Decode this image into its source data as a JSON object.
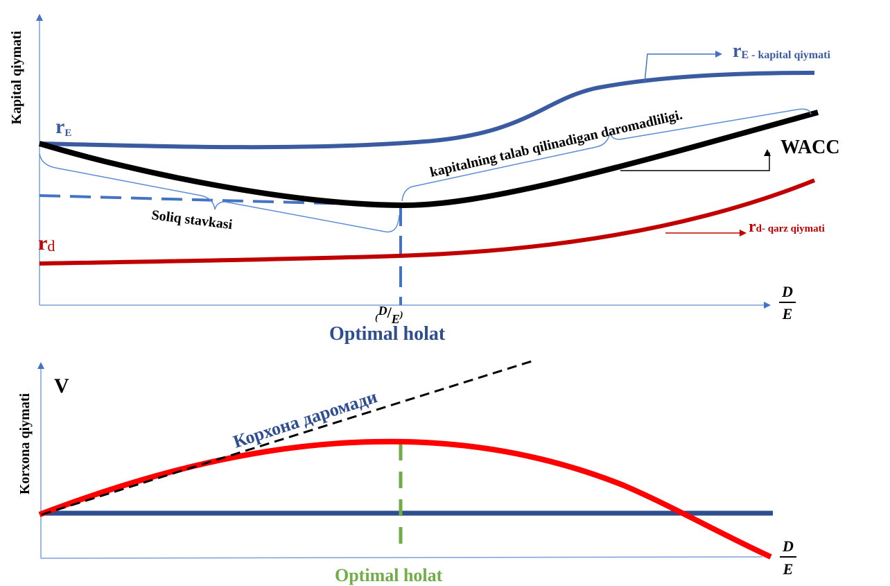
{
  "top": {
    "y_axis_label": "Kapital qiymati",
    "re": {
      "main": "r",
      "sub": "E",
      "right_main": "r",
      "right_sub": "E",
      "right_suffix": " - kapital qiymati"
    },
    "rd": {
      "main": "r",
      "sub": "d",
      "right_main": "r",
      "right_suffix": "d- qarz qiymati"
    },
    "wacc_label": "WACC",
    "brace_label_upper": "kapitalning talab qilinadigan daromadliligi.",
    "brace_label_lower": "Soliq stavkasi",
    "x_axis": {
      "numerator": "D",
      "denominator": "E"
    },
    "optimal_tick": {
      "open": "(",
      "numerator": "D",
      "slash": "/",
      "denominator": "E",
      "close": ")"
    },
    "optimal_label": "Optimal holat",
    "colors": {
      "re": "#3A5BA0",
      "wacc": "#000000",
      "rd": "#C00000",
      "dashed": "#4472C4",
      "axis": "#7F9FD8",
      "brace": "#5B8BD6"
    }
  },
  "bottom": {
    "y_axis_label": "Korxona qiymati",
    "v_label": "V",
    "dashed_label": "Корхона даромади",
    "x_axis": {
      "numerator": "D",
      "denominator": "E"
    },
    "optimal_label": "Optimal holat",
    "colors": {
      "value_curve": "#FF0000",
      "baseline": "#2F4E8F",
      "optimal_line": "#70AD47",
      "optimal_label": "#70AD47",
      "dashed_label": "#2F4E8F"
    }
  }
}
